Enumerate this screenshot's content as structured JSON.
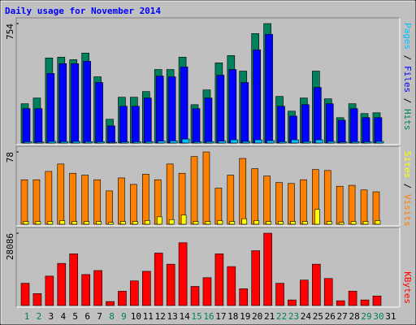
{
  "chart_data": [
    {
      "type": "bar",
      "title": "Daily usage for November 2014",
      "categories": [
        "1",
        "2",
        "3",
        "4",
        "5",
        "6",
        "7",
        "8",
        "9",
        "10",
        "11",
        "12",
        "13",
        "14",
        "15",
        "16",
        "17",
        "18",
        "19",
        "20",
        "21",
        "22",
        "23",
        "24",
        "25",
        "26",
        "27",
        "28",
        "29",
        "30",
        "31"
      ],
      "category_colors": [
        "#00805c",
        "#00805c",
        "#000000",
        "#000000",
        "#000000",
        "#000000",
        "#000000",
        "#00805c",
        "#00805c",
        "#000000",
        "#000000",
        "#000000",
        "#000000",
        "#000000",
        "#00805c",
        "#00805c",
        "#000000",
        "#000000",
        "#000000",
        "#000000",
        "#000000",
        "#00805c",
        "#00805c",
        "#000000",
        "#000000",
        "#000000",
        "#000000",
        "#000000",
        "#00805c",
        "#00805c",
        "#000000"
      ],
      "ylim": [
        0,
        754
      ],
      "yticks": [
        754
      ],
      "series": [
        {
          "name": "Hits",
          "color": "#00805c",
          "values": [
            248,
            284,
            537,
            542,
            526,
            568,
            418,
            150,
            289,
            289,
            325,
            464,
            464,
            542,
            242,
            335,
            506,
            552,
            454,
            691,
            754,
            294,
            201,
            284,
            454,
            279,
            160,
            248,
            186,
            191,
            null
          ]
        },
        {
          "name": "Files",
          "color": "#0000ff",
          "values": [
            217,
            217,
            439,
            501,
            501,
            516,
            382,
            108,
            232,
            232,
            284,
            423,
            418,
            480,
            217,
            284,
            428,
            464,
            382,
            588,
            686,
            232,
            170,
            242,
            351,
            248,
            144,
            217,
            160,
            160,
            null
          ]
        },
        {
          "name": "Pages",
          "color": "#00c0ff",
          "values": [
            8,
            6,
            10,
            9,
            10,
            9,
            8,
            5,
            7,
            8,
            9,
            12,
            14,
            25,
            8,
            9,
            12,
            20,
            10,
            20,
            15,
            8,
            20,
            9,
            20,
            10,
            6,
            8,
            8,
            10,
            null
          ]
        }
      ]
    },
    {
      "type": "bar",
      "ylim": [
        0,
        78
      ],
      "yticks": [
        78
      ],
      "series": [
        {
          "name": "Visits",
          "color": "#ff8000",
          "values": [
            48,
            48,
            57,
            65,
            55,
            53,
            48,
            36,
            50,
            43,
            54,
            48,
            65,
            55,
            73,
            78,
            39,
            53,
            71,
            60,
            52,
            45,
            44,
            48,
            59,
            58,
            41,
            42,
            37,
            35,
            null
          ]
        },
        {
          "name": "Sites",
          "color": "#ffff00",
          "values": [
            3,
            3,
            3,
            4,
            3,
            3,
            3,
            2,
            3,
            3,
            4,
            8,
            5,
            10,
            3,
            3,
            4,
            3,
            6,
            4,
            3,
            3,
            3,
            3,
            16,
            3,
            2,
            3,
            3,
            4,
            null
          ]
        }
      ]
    },
    {
      "type": "bar",
      "ylim": [
        0,
        28086
      ],
      "yticks": [
        28086
      ],
      "series": [
        {
          "name": "KBytes",
          "color": "#ff0000",
          "values": [
            8641,
            4629,
            11418,
            16356,
            20059,
            12035,
            13578,
            1543,
            5555,
            9567,
            13270,
            20368,
            16047,
            24379,
            7406,
            10801,
            20059,
            15121,
            6481,
            21294,
            28086,
            8641,
            2160,
            9875,
            16047,
            10492,
            1852,
            5555,
            2160,
            3703,
            null
          ]
        }
      ]
    }
  ]
}
